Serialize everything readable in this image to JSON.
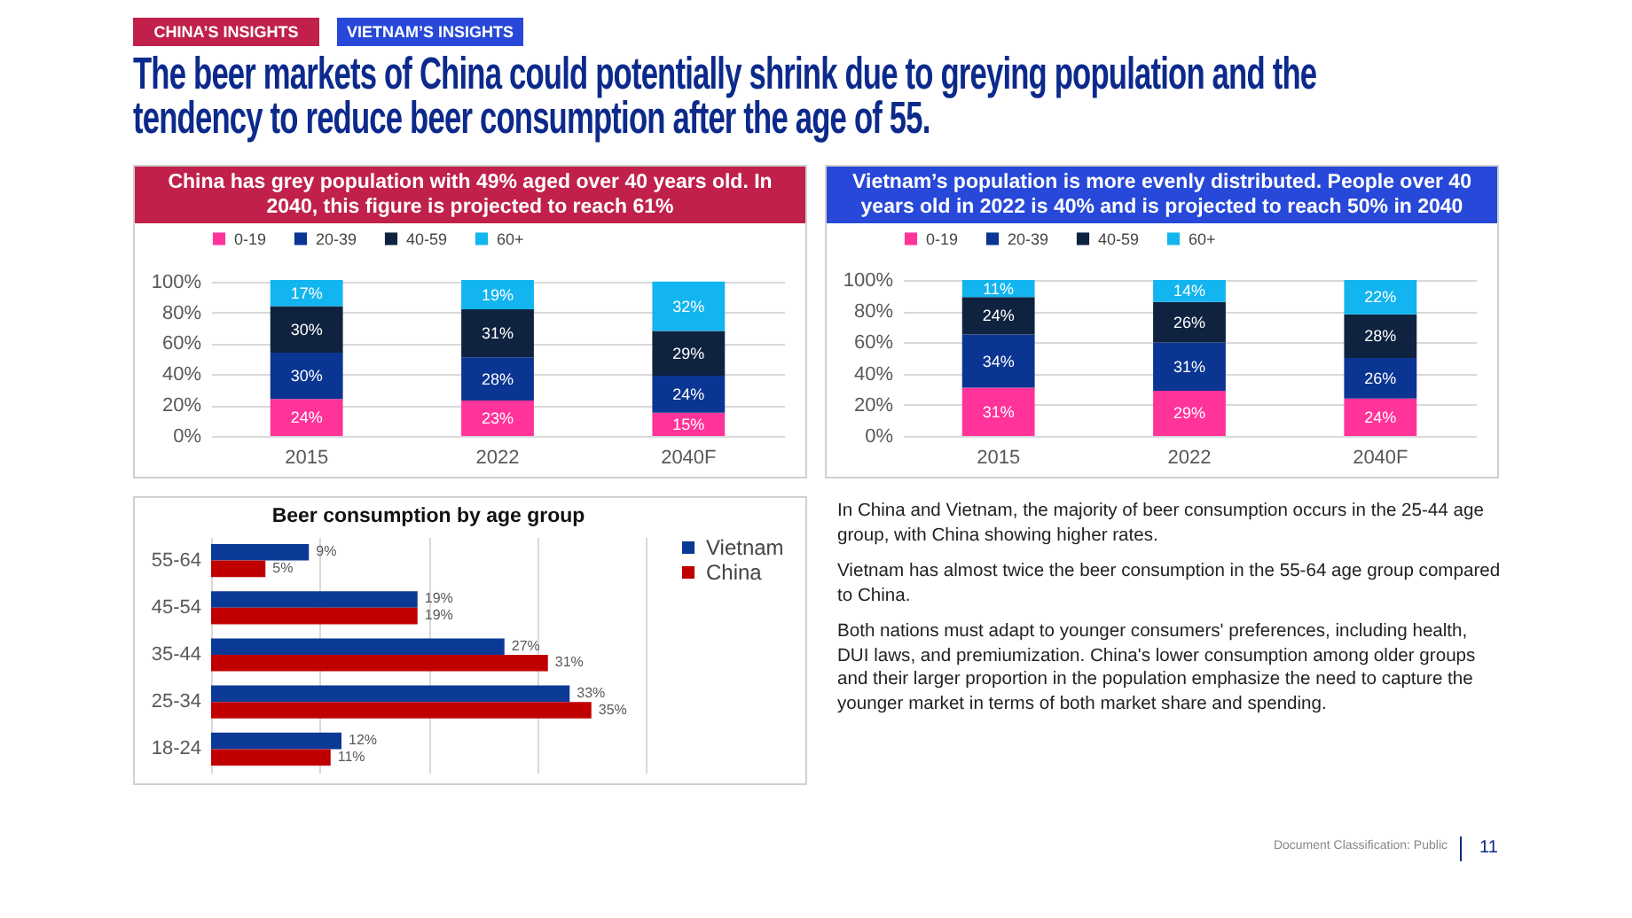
{
  "chart_data": [
    {
      "type": "other",
      "title": "The beer markets of China could potentially shrink due to greying population and the tendency to reduce beer consumption after the age of 55.",
      "annotations": [
        "CHINA’S INSIGHTS",
        "VIETNAM’S INSIGHTS",
        "Document Classification: Public",
        "11"
      ]
    },
    {
      "type": "bar",
      "title": "China has grey population with 49% aged over 40 years old. In 2040, this figure is projected to reach 61%",
      "categories": [
        "2015",
        "2022",
        "2040F"
      ],
      "stacked": true,
      "series": [
        {
          "name": "0-19",
          "color": "#ff3399",
          "values": [
            24,
            23,
            15
          ],
          "value_labels": [
            "24%",
            "23%",
            "15%"
          ]
        },
        {
          "name": "20-39",
          "color": "#0a3592",
          "values": [
            30,
            28,
            24
          ],
          "value_labels": [
            "30%",
            "28%",
            "24%"
          ]
        },
        {
          "name": "40-59",
          "color": "#0f2340",
          "values": [
            30,
            31,
            29
          ],
          "value_labels": [
            "30%",
            "31%",
            "29%"
          ]
        },
        {
          "name": "60+",
          "color": "#12b5ef",
          "values": [
            17,
            19,
            32
          ],
          "value_labels": [
            "17%",
            "19%",
            "32%"
          ]
        }
      ],
      "ylim": [
        0,
        101
      ],
      "yticks": [
        {
          "value": 0,
          "label": "0%"
        },
        {
          "value": 20,
          "label": "20%"
        },
        {
          "value": 40,
          "label": "40%"
        },
        {
          "value": 60,
          "label": "60%"
        },
        {
          "value": 80,
          "label": "80%"
        },
        {
          "value": 100,
          "label": "100%"
        }
      ],
      "grid": "y",
      "legend": "top"
    },
    {
      "type": "bar",
      "title": "Vietnam’s population is more evenly distributed. People over 40 years old in 2022 is 40% and is projected to reach 50% in 2040",
      "categories": [
        "2015",
        "2022",
        "2040F"
      ],
      "stacked": true,
      "series": [
        {
          "name": "0-19",
          "color": "#ff3399",
          "values": [
            31,
            29,
            24
          ],
          "value_labels": [
            "31%",
            "29%",
            "24%"
          ]
        },
        {
          "name": "20-39",
          "color": "#0a3592",
          "values": [
            34,
            31,
            26
          ],
          "value_labels": [
            "34%",
            "31%",
            "26%"
          ]
        },
        {
          "name": "40-59",
          "color": "#0f2340",
          "values": [
            24,
            26,
            28
          ],
          "value_labels": [
            "24%",
            "26%",
            "28%"
          ]
        },
        {
          "name": "60+",
          "color": "#12b5ef",
          "values": [
            11,
            14,
            22
          ],
          "value_labels": [
            "11%",
            "14%",
            "22%"
          ]
        }
      ],
      "ylim": [
        0,
        100
      ],
      "yticks": [
        {
          "value": 0,
          "label": "0%"
        },
        {
          "value": 20,
          "label": "20%"
        },
        {
          "value": 40,
          "label": "40%"
        },
        {
          "value": 60,
          "label": "60%"
        },
        {
          "value": 80,
          "label": "80%"
        },
        {
          "value": 100,
          "label": "100%"
        }
      ],
      "grid": "y",
      "legend": "top"
    },
    {
      "type": "bar",
      "orientation": "horizontal",
      "title": "Beer consumption by age group",
      "categories": [
        "55-64",
        "45-54",
        "35-44",
        "25-34",
        "18-24"
      ],
      "series": [
        {
          "name": "Vietnam",
          "color": "#0b3a96",
          "values": [
            9,
            19,
            27,
            33,
            12
          ],
          "value_labels": [
            "9%",
            "19%",
            "27%",
            "33%",
            "12%"
          ]
        },
        {
          "name": "China",
          "color": "#c00000",
          "values": [
            5,
            19,
            31,
            35,
            11
          ],
          "value_labels": [
            "5%",
            "19%",
            "31%",
            "35%",
            "11%"
          ]
        }
      ],
      "xlim": [
        0,
        40
      ],
      "xticks": [
        {
          "value": 0,
          "label": null
        },
        {
          "value": 10,
          "label": null
        },
        {
          "value": 20,
          "label": null
        },
        {
          "value": 30,
          "label": null
        },
        {
          "value": 40,
          "label": null
        }
      ],
      "tick_labels": "y",
      "grid": "x",
      "legend": "right"
    },
    {
      "type": "other",
      "annotations": [
        "In China and Vietnam, the majority of beer consumption occurs in the 25-44 age group, with China showing higher rates.",
        "Vietnam has almost twice the beer consumption in the 55-64 age group compared to China.",
        "Both nations must adapt to younger consumers' preferences, including health, DUI laws, and premiumization. China's lower consumption among older groups and their larger proportion in the population emphasize the need to capture the younger market in terms of both market share and spending."
      ]
    }
  ]
}
